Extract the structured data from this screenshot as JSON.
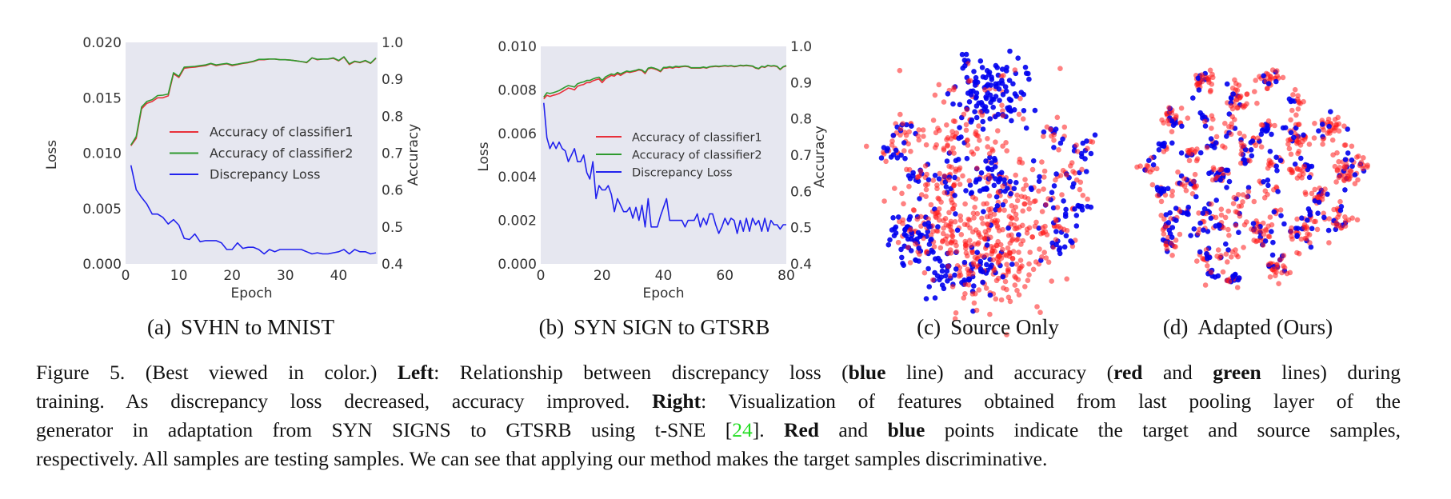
{
  "figure": {
    "subcaptions": [
      {
        "label": "(a)",
        "text": "SVHN to MNIST"
      },
      {
        "label": "(b)",
        "text": "SYN SIGN to GTSRB"
      },
      {
        "label": "(c)",
        "text": "Source Only"
      },
      {
        "label": "(d)",
        "text": "Adapted (Ours)"
      }
    ],
    "caption": {
      "l1a": "Figure 5. (Best viewed in color.)  ",
      "l1b": "Left",
      "l1c": ": Relationship between discrepancy loss (",
      "l1d": "blue",
      "l1e": " line) and accuracy (",
      "l1f": "red",
      "l1g": " and ",
      "l1h": "green",
      "l1i": " lines) during",
      "l2a": "training.  As discrepancy loss decreased, accuracy improved.  ",
      "l2b": "Right",
      "l2c": ": Visualization of features obtained from last pooling layer of the",
      "l3a": "generator in adaptation from SYN SIGNS to GTSRB using t-SNE [",
      "l3b": "24",
      "l3c": "].  ",
      "l3d": "Red",
      "l3e": " and ",
      "l3f": "blue",
      "l3g": " points indicate the target and source samples,",
      "l4": "respectively. All samples are testing samples. We can see that applying our method makes the target samples discriminative."
    },
    "colors": {
      "reference": "#22dd22",
      "plot_background": "#e6e7f0"
    }
  },
  "chart_data": [
    {
      "type": "line",
      "xlabel": "Epoch",
      "ylabel_left": "Loss",
      "ylabel_right": "Accuracy",
      "xlim": [
        0,
        47.3
      ],
      "ylim_left": [
        0,
        0.02
      ],
      "ylim_right": [
        0.4,
        1.0
      ],
      "xticks": [
        "0",
        "10",
        "20",
        "30",
        "40"
      ],
      "yticks_left": [
        "0.000",
        "0.005",
        "0.010",
        "0.015",
        "0.020"
      ],
      "yticks_right": [
        "0.4",
        "0.5",
        "0.6",
        "0.7",
        "0.8",
        "0.9",
        "1.0"
      ],
      "grid": false,
      "legend": "center-right",
      "series": [
        {
          "name": "Accuracy of classifier1",
          "axis": "right",
          "color": "#e8303a",
          "x_start": 1,
          "values": [
            0.72,
            0.74,
            0.82,
            0.835,
            0.84,
            0.85,
            0.85,
            0.855,
            0.915,
            0.905,
            0.93,
            0.932,
            0.933,
            0.935,
            0.937,
            0.942,
            0.937,
            0.94,
            0.942,
            0.937,
            0.94,
            0.943,
            0.945,
            0.948,
            0.953,
            0.953,
            0.955,
            0.955,
            0.953,
            0.953,
            0.952,
            0.95,
            0.948,
            0.945,
            0.958,
            0.953,
            0.955,
            0.955,
            0.957,
            0.95,
            0.96,
            0.94,
            0.948,
            0.945,
            0.95,
            0.943,
            0.957
          ]
        },
        {
          "name": "Accuracy of classifier2",
          "axis": "right",
          "color": "#2e9a2e",
          "x_start": 1,
          "values": [
            0.722,
            0.745,
            0.825,
            0.84,
            0.845,
            0.856,
            0.857,
            0.86,
            0.918,
            0.908,
            0.933,
            0.934,
            0.935,
            0.937,
            0.939,
            0.943,
            0.939,
            0.941,
            0.943,
            0.939,
            0.941,
            0.944,
            0.946,
            0.949,
            0.954,
            0.954,
            0.955,
            0.955,
            0.953,
            0.953,
            0.952,
            0.95,
            0.948,
            0.946,
            0.958,
            0.954,
            0.955,
            0.955,
            0.958,
            0.951,
            0.961,
            0.942,
            0.949,
            0.946,
            0.951,
            0.944,
            0.958
          ]
        },
        {
          "name": "Discrepancy Loss",
          "axis": "left",
          "color": "#2222ee",
          "x_start": 1,
          "values": [
            0.0089,
            0.0067,
            0.006,
            0.0054,
            0.0045,
            0.0045,
            0.0042,
            0.0036,
            0.004,
            0.0035,
            0.0023,
            0.0022,
            0.0027,
            0.002,
            0.0021,
            0.0021,
            0.0021,
            0.0019,
            0.0013,
            0.0013,
            0.0019,
            0.0014,
            0.0015,
            0.0015,
            0.0013,
            0.0009,
            0.0013,
            0.0011,
            0.0013,
            0.0013,
            0.0013,
            0.0013,
            0.0013,
            0.0011,
            0.0009,
            0.001,
            0.0009,
            0.0009,
            0.001,
            0.0011,
            0.0013,
            0.0009,
            0.0013,
            0.0011,
            0.0011,
            0.0009,
            0.001
          ]
        }
      ]
    },
    {
      "type": "line",
      "xlabel": "Epoch",
      "ylabel_left": "Loss",
      "ylabel_right": "Accuracy",
      "xlim": [
        0,
        80
      ],
      "ylim_left": [
        0,
        0.01
      ],
      "ylim_right": [
        0.4,
        1.0
      ],
      "xticks": [
        "0",
        "20",
        "40",
        "60",
        "80"
      ],
      "yticks_left": [
        "0.000",
        "0.002",
        "0.004",
        "0.006",
        "0.008",
        "0.010"
      ],
      "yticks_right": [
        "0.4",
        "0.5",
        "0.6",
        "0.7",
        "0.8",
        "0.9",
        "1.0"
      ],
      "grid": false,
      "legend": "center-right",
      "series": [
        {
          "name": "Accuracy of classifier1",
          "axis": "right",
          "color": "#e8303a",
          "x_start": 1,
          "values": [
            0.855,
            0.865,
            0.862,
            0.865,
            0.867,
            0.87,
            0.875,
            0.88,
            0.885,
            0.883,
            0.88,
            0.89,
            0.893,
            0.895,
            0.9,
            0.9,
            0.905,
            0.908,
            0.91,
            0.9,
            0.91,
            0.915,
            0.92,
            0.918,
            0.925,
            0.92,
            0.925,
            0.93,
            0.928,
            0.93,
            0.932,
            0.935,
            0.933,
            0.925,
            0.938,
            0.94,
            0.938,
            0.935,
            0.93,
            0.94,
            0.94,
            0.942,
            0.94,
            0.943,
            0.942,
            0.944,
            0.945,
            0.944,
            0.94,
            0.94,
            0.94,
            0.94,
            0.942,
            0.94,
            0.943,
            0.944,
            0.945,
            0.944,
            0.945,
            0.946,
            0.945,
            0.946,
            0.944,
            0.945,
            0.947,
            0.946,
            0.947,
            0.946,
            0.945,
            0.94,
            0.938,
            0.944,
            0.942,
            0.947,
            0.945,
            0.946,
            0.944,
            0.936,
            0.943,
            0.946
          ]
        },
        {
          "name": "Accuracy of classifier2",
          "axis": "right",
          "color": "#2e9a2e",
          "x_start": 1,
          "values": [
            0.86,
            0.872,
            0.87,
            0.872,
            0.875,
            0.878,
            0.883,
            0.888,
            0.892,
            0.89,
            0.888,
            0.897,
            0.9,
            0.902,
            0.906,
            0.906,
            0.91,
            0.913,
            0.915,
            0.906,
            0.915,
            0.92,
            0.924,
            0.922,
            0.928,
            0.924,
            0.928,
            0.932,
            0.93,
            0.932,
            0.934,
            0.937,
            0.935,
            0.928,
            0.94,
            0.942,
            0.94,
            0.937,
            0.932,
            0.942,
            0.942,
            0.944,
            0.942,
            0.945,
            0.944,
            0.945,
            0.946,
            0.945,
            0.941,
            0.941,
            0.941,
            0.941,
            0.943,
            0.941,
            0.944,
            0.945,
            0.946,
            0.945,
            0.946,
            0.947,
            0.946,
            0.947,
            0.945,
            0.946,
            0.948,
            0.947,
            0.948,
            0.947,
            0.946,
            0.941,
            0.939,
            0.945,
            0.943,
            0.948,
            0.946,
            0.947,
            0.945,
            0.937,
            0.944,
            0.947
          ]
        },
        {
          "name": "Discrepancy Loss",
          "axis": "left",
          "color": "#2222ee",
          "x_start": 1,
          "values": [
            0.0074,
            0.0058,
            0.0053,
            0.0056,
            0.0053,
            0.0056,
            0.0053,
            0.0052,
            0.0047,
            0.005,
            0.0053,
            0.0047,
            0.0047,
            0.005,
            0.0042,
            0.0039,
            0.0047,
            0.003,
            0.0036,
            0.0034,
            0.0034,
            0.0036,
            0.0032,
            0.0024,
            0.003,
            0.0027,
            0.0024,
            0.0024,
            0.0026,
            0.0021,
            0.0026,
            0.002,
            0.0027,
            0.0017,
            0.003,
            0.0017,
            0.0017,
            0.0017,
            0.0022,
            0.0026,
            0.003,
            0.002,
            0.002,
            0.002,
            0.002,
            0.002,
            0.0017,
            0.002,
            0.002,
            0.002,
            0.0023,
            0.0017,
            0.0021,
            0.0018,
            0.0023,
            0.0023,
            0.0018,
            0.0014,
            0.0017,
            0.0021,
            0.0018,
            0.0021,
            0.002,
            0.0014,
            0.002,
            0.0015,
            0.0021,
            0.0015,
            0.0021,
            0.0018,
            0.002,
            0.0015,
            0.0021,
            0.0015,
            0.002,
            0.0018,
            0.0018,
            0.0016,
            0.0018,
            0.0018
          ]
        }
      ]
    },
    {
      "type": "scatter",
      "colors": {
        "target": "#ff1a1a",
        "source": "#0000ee"
      },
      "cluster_fields": [
        "x",
        "y",
        "spread",
        "target_count",
        "source_count"
      ],
      "clusters": [
        [
          2,
          33,
          8,
          15,
          110
        ],
        [
          -3,
          22,
          12,
          40,
          10
        ],
        [
          -33,
          18,
          3,
          12,
          8
        ],
        [
          -39,
          8,
          4,
          15,
          10
        ],
        [
          -28,
          -1,
          3,
          6,
          10
        ],
        [
          31,
          16,
          3,
          8,
          8
        ],
        [
          41,
          9,
          2.5,
          3,
          10
        ],
        [
          37,
          -1,
          4,
          15,
          6
        ],
        [
          41,
          -15,
          2.5,
          3,
          10
        ],
        [
          32,
          -30,
          3,
          3,
          12
        ],
        [
          29,
          -22,
          4,
          12,
          6
        ],
        [
          -13,
          11,
          7,
          50,
          3
        ],
        [
          2,
          -2,
          5,
          8,
          35
        ],
        [
          -14,
          -4,
          5,
          20,
          12
        ],
        [
          20,
          -6,
          9,
          40,
          15
        ],
        [
          -30,
          -26,
          6,
          10,
          50
        ],
        [
          -17,
          -40,
          6,
          5,
          35
        ],
        [
          -3,
          -42,
          5,
          10,
          25
        ],
        [
          3,
          -30,
          12,
          250,
          20
        ],
        [
          -20,
          -18,
          8,
          60,
          10
        ]
      ]
    },
    {
      "type": "scatter",
      "colors": {
        "target": "#ff1a1a",
        "source": "#0000ee"
      },
      "cluster_fields": [
        "x",
        "y",
        "spread",
        "target_count",
        "source_count"
      ],
      "clusters": [
        [
          -19.9,
          40.3,
          2.5,
          24,
          8
        ],
        [
          8.4,
          40.9,
          2.5,
          22,
          5
        ],
        [
          -6,
          32.6,
          3,
          30,
          8
        ],
        [
          19,
          31.4,
          2,
          10,
          4
        ],
        [
          -31.6,
          24.8,
          2.5,
          22,
          10
        ],
        [
          -18.2,
          23.7,
          1.5,
          5,
          6
        ],
        [
          -7.7,
          20.3,
          1.8,
          8,
          3
        ],
        [
          7.3,
          21.4,
          1.8,
          6,
          8
        ],
        [
          33.4,
          20.3,
          3,
          30,
          6
        ],
        [
          19,
          17,
          3,
          30,
          8
        ],
        [
          -36,
          12.6,
          1.5,
          4,
          8
        ],
        [
          -24.3,
          9.8,
          2,
          12,
          5
        ],
        [
          -15.4,
          13.7,
          1.8,
          6,
          6
        ],
        [
          -2.1,
          12.6,
          2,
          8,
          6
        ],
        [
          2.9,
          15.3,
          1.5,
          6,
          4
        ],
        [
          -1,
          6.4,
          1.5,
          5,
          4
        ],
        [
          10.1,
          6.4,
          2,
          10,
          5
        ],
        [
          -43.2,
          4.2,
          2,
          10,
          4
        ],
        [
          21.2,
          3.1,
          2.5,
          18,
          8
        ],
        [
          -12.7,
          0.9,
          2.5,
          12,
          16
        ],
        [
          40.7,
          3.7,
          4,
          45,
          12
        ],
        [
          -26.6,
          -3,
          2.5,
          18,
          6
        ],
        [
          -36,
          -6.3,
          2,
          8,
          10
        ],
        [
          6.8,
          -4.1,
          2,
          8,
          4
        ],
        [
          -2.7,
          -8,
          2,
          8,
          3
        ],
        [
          27.9,
          -8,
          2.5,
          18,
          8
        ],
        [
          -27.7,
          -15.2,
          2,
          5,
          8
        ],
        [
          -17.7,
          -14.1,
          2.5,
          8,
          8
        ],
        [
          -6.6,
          -16.3,
          2.5,
          10,
          3
        ],
        [
          10.1,
          -15.2,
          1.5,
          5,
          2
        ],
        [
          23.4,
          -16.3,
          2,
          6,
          5
        ],
        [
          37.3,
          -18,
          3,
          24,
          10
        ],
        [
          -35.4,
          -19.7,
          2,
          6,
          8
        ],
        [
          -12.7,
          -20.8,
          1.5,
          4,
          6
        ],
        [
          -19.9,
          -21.9,
          2,
          4,
          6
        ],
        [
          4.6,
          -23.6,
          3,
          25,
          10
        ],
        [
          21.2,
          -24.1,
          3.5,
          25,
          10
        ],
        [
          -32.7,
          -27.4,
          2.5,
          14,
          8
        ],
        [
          -18.8,
          -33,
          2,
          10,
          6
        ],
        [
          -9.3,
          -31.3,
          3,
          14,
          3
        ],
        [
          11.2,
          -37.4,
          3,
          24,
          8
        ],
        [
          -16.6,
          -40.8,
          1.5,
          3,
          6
        ],
        [
          -6.6,
          -43,
          2,
          10,
          10
        ]
      ]
    }
  ]
}
